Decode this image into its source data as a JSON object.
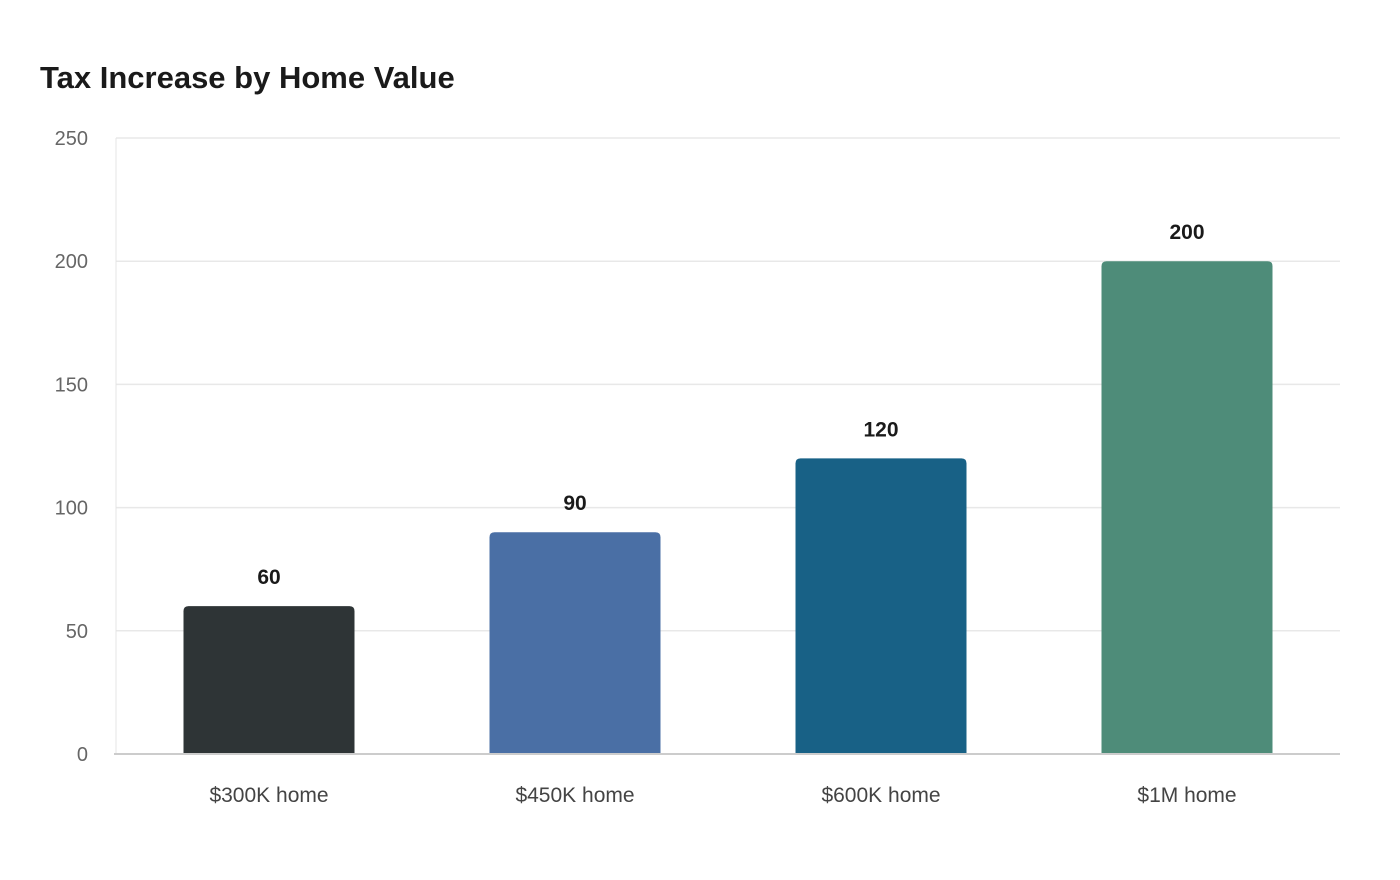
{
  "chart_data": {
    "type": "bar",
    "title": "Tax Increase by Home Value",
    "xlabel": "",
    "ylabel": "",
    "categories": [
      "$300K home",
      "$450K home",
      "$600K home",
      "$1M home"
    ],
    "values": [
      60,
      90,
      120,
      200
    ],
    "value_labels": [
      "60",
      "90",
      "120",
      "200"
    ],
    "colors": [
      "#2e3436",
      "#4a6fa5",
      "#186186",
      "#4e8c79"
    ],
    "ylim": [
      0,
      250
    ],
    "yticks": [
      0,
      50,
      100,
      150,
      200,
      250
    ],
    "ytick_labels": [
      "0",
      "50",
      "100",
      "150",
      "200",
      "250"
    ],
    "grid": true,
    "legend": "none"
  }
}
